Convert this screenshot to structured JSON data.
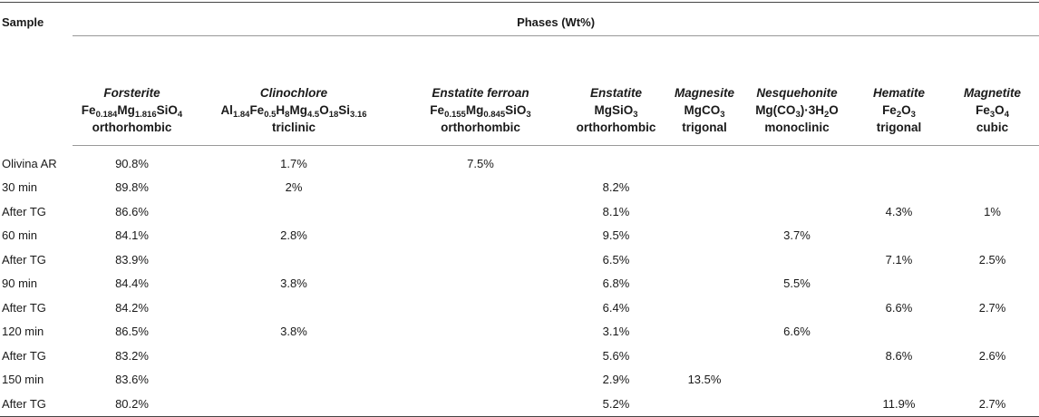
{
  "table": {
    "sample_header": "Sample",
    "phases_header": "Phases (Wt%)",
    "phases": [
      {
        "name": "Forsterite",
        "formula": [
          [
            "Fe",
            ""
          ],
          [
            "0.184",
            "sub"
          ],
          [
            "Mg",
            ""
          ],
          [
            "1.816",
            "sub"
          ],
          [
            "SiO",
            ""
          ],
          [
            "4",
            "sub"
          ]
        ],
        "system": "orthorhombic"
      },
      {
        "name": "Clinochlore",
        "formula": [
          [
            "Al",
            ""
          ],
          [
            "1.84",
            "sub"
          ],
          [
            "Fe",
            ""
          ],
          [
            "0.5",
            "sub"
          ],
          [
            "H",
            ""
          ],
          [
            "8",
            "sub"
          ],
          [
            "Mg",
            ""
          ],
          [
            "4.5",
            "sub"
          ],
          [
            "O",
            ""
          ],
          [
            "18",
            "sub"
          ],
          [
            "Si",
            ""
          ],
          [
            "3.16",
            "sub"
          ]
        ],
        "system": "triclinic"
      },
      {
        "name": "Enstatite ferroan",
        "formula": [
          [
            "Fe",
            ""
          ],
          [
            "0.155",
            "sub"
          ],
          [
            "Mg",
            ""
          ],
          [
            "0.845",
            "sub"
          ],
          [
            "SiO",
            ""
          ],
          [
            "3",
            "sub"
          ]
        ],
        "system": "orthorhombic"
      },
      {
        "name": "Enstatite",
        "formula": [
          [
            "MgSiO",
            ""
          ],
          [
            "3",
            "sub"
          ]
        ],
        "system": "orthorhombic"
      },
      {
        "name": "Magnesite",
        "formula": [
          [
            "MgCO",
            ""
          ],
          [
            "3",
            "sub"
          ]
        ],
        "system": "trigonal"
      },
      {
        "name": "Nesquehonite",
        "formula": [
          [
            "Mg(CO",
            ""
          ],
          [
            "3",
            "sub"
          ],
          [
            ")·3H",
            ""
          ],
          [
            "2",
            "sub"
          ],
          [
            "O",
            ""
          ]
        ],
        "system": "monoclinic"
      },
      {
        "name": "Hematite",
        "formula": [
          [
            "Fe",
            ""
          ],
          [
            "2",
            "sub"
          ],
          [
            "O",
            ""
          ],
          [
            "3",
            "sub"
          ]
        ],
        "system": "trigonal"
      },
      {
        "name": "Magnetite",
        "formula": [
          [
            "Fe",
            ""
          ],
          [
            "3",
            "sub"
          ],
          [
            "O",
            ""
          ],
          [
            "4",
            "sub"
          ]
        ],
        "system": "cubic"
      }
    ],
    "rows": [
      {
        "sample": "Olivina AR",
        "values": [
          "90.8%",
          "1.7%",
          "7.5%",
          "",
          "",
          "",
          "",
          ""
        ]
      },
      {
        "sample": "30 min",
        "values": [
          "89.8%",
          "2%",
          "",
          "8.2%",
          "",
          "",
          "",
          ""
        ]
      },
      {
        "sample": "After TG",
        "values": [
          "86.6%",
          "",
          "",
          "8.1%",
          "",
          "",
          "4.3%",
          "1%"
        ]
      },
      {
        "sample": "60 min",
        "values": [
          "84.1%",
          "2.8%",
          "",
          "9.5%",
          "",
          "3.7%",
          "",
          ""
        ]
      },
      {
        "sample": "After TG",
        "values": [
          "83.9%",
          "",
          "",
          "6.5%",
          "",
          "",
          "7.1%",
          "2.5%"
        ]
      },
      {
        "sample": "90 min",
        "values": [
          "84.4%",
          "3.8%",
          "",
          "6.8%",
          "",
          "5.5%",
          "",
          ""
        ]
      },
      {
        "sample": "After TG",
        "values": [
          "84.2%",
          "",
          "",
          "6.4%",
          "",
          "",
          "6.6%",
          "2.7%"
        ]
      },
      {
        "sample": "120 min",
        "values": [
          "86.5%",
          "3.8%",
          "",
          "3.1%",
          "",
          "6.6%",
          "",
          ""
        ]
      },
      {
        "sample": "After TG",
        "values": [
          "83.2%",
          "",
          "",
          "5.6%",
          "",
          "",
          "8.6%",
          "2.6%"
        ]
      },
      {
        "sample": "150 min",
        "values": [
          "83.6%",
          "",
          "",
          "2.9%",
          "13.5%",
          "",
          "",
          ""
        ]
      },
      {
        "sample": "After TG",
        "values": [
          "80.2%",
          "",
          "",
          "5.2%",
          "",
          "",
          "11.9%",
          "2.7%"
        ]
      }
    ]
  }
}
